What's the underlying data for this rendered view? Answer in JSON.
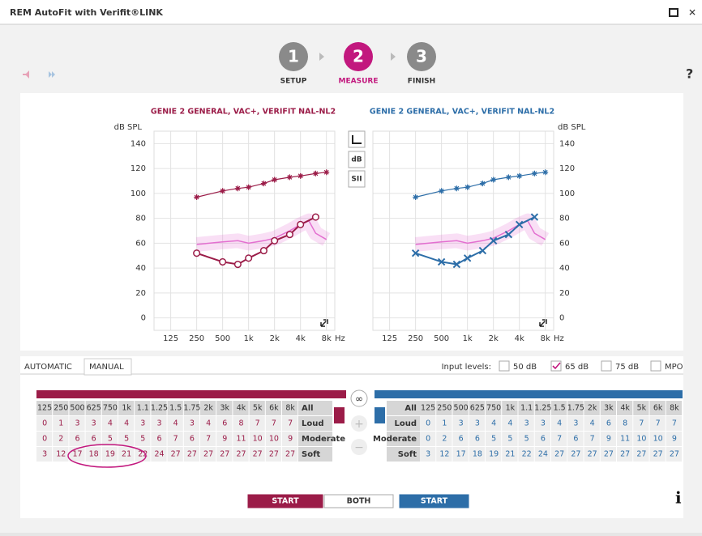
{
  "window_title": "REM AutoFit with Verifit®LINK",
  "steps": [
    {
      "number": "1",
      "label": "SETUP"
    },
    {
      "number": "2",
      "label": "MEASURE"
    },
    {
      "number": "3",
      "label": "FINISH"
    }
  ],
  "help": "?",
  "side_buttons": [
    "dB",
    "SII"
  ],
  "chart_data": [
    {
      "type": "line",
      "title": "GENIE 2 GENERAL, VAC+, VERIFIT NAL-NL2",
      "ylabel": "dB SPL",
      "xunit": "Hz",
      "xscale": "log",
      "xlim": [
        80,
        10000
      ],
      "ylim": [
        -10,
        150
      ],
      "grid": true,
      "color": "#9b1c48",
      "xticks": [
        125,
        250,
        500,
        {
          "value": 1000,
          "label": "1k"
        },
        {
          "value": 2000,
          "label": "2k"
        },
        {
          "value": 4000,
          "label": "4k"
        },
        {
          "value": 8000,
          "label": "8k"
        }
      ],
      "yticks": [
        0,
        20,
        40,
        60,
        80,
        100,
        120,
        140
      ],
      "series": [
        {
          "color": "#e36fd0",
          "marker": "none",
          "x": [
            250,
            500,
            750,
            1000,
            1500,
            2000,
            3000,
            4000,
            5000,
            6000,
            8000
          ],
          "values": [
            59,
            61,
            62,
            60,
            62,
            64,
            70,
            75,
            78,
            68,
            63
          ]
        },
        {
          "color": "#9b1c48",
          "marker": "star",
          "x": [
            250,
            500,
            750,
            1000,
            1500,
            2000,
            3000,
            4000,
            6000,
            8000
          ],
          "values": [
            97,
            102,
            104,
            105,
            108,
            111,
            113,
            114,
            116,
            117
          ]
        },
        {
          "color": "#9b1c48",
          "marker": "circle",
          "x": [
            250,
            500,
            750,
            1000,
            1500,
            2000,
            3000,
            4000,
            6000
          ],
          "values": [
            52,
            45,
            43,
            48,
            54,
            62,
            67,
            75,
            81
          ]
        }
      ]
    },
    {
      "type": "line",
      "title": "GENIE 2 GENERAL, VAC+, VERIFIT NAL-NL2",
      "ylabel": "dB SPL",
      "xunit": "Hz",
      "xscale": "log",
      "xlim": [
        80,
        10000
      ],
      "ylim": [
        -10,
        150
      ],
      "grid": true,
      "color": "#2d6ea8",
      "xticks": [
        125,
        250,
        500,
        {
          "value": 1000,
          "label": "1k"
        },
        {
          "value": 2000,
          "label": "2k"
        },
        {
          "value": 4000,
          "label": "4k"
        },
        {
          "value": 8000,
          "label": "8k"
        }
      ],
      "yticks": [
        0,
        20,
        40,
        60,
        80,
        100,
        120,
        140
      ],
      "series": [
        {
          "color": "#e36fd0",
          "marker": "none",
          "x": [
            250,
            500,
            750,
            1000,
            1500,
            2000,
            3000,
            4000,
            5000,
            6000,
            8000
          ],
          "values": [
            59,
            61,
            62,
            60,
            62,
            64,
            70,
            75,
            78,
            68,
            63
          ]
        },
        {
          "color": "#2d6ea8",
          "marker": "star",
          "x": [
            250,
            500,
            750,
            1000,
            1500,
            2000,
            3000,
            4000,
            6000,
            8000
          ],
          "values": [
            97,
            102,
            104,
            105,
            108,
            111,
            113,
            114,
            116,
            117
          ]
        },
        {
          "color": "#2d6ea8",
          "marker": "cross",
          "x": [
            250,
            500,
            750,
            1000,
            1500,
            2000,
            3000,
            4000,
            6000
          ],
          "values": [
            52,
            45,
            43,
            48,
            54,
            62,
            67,
            75,
            81
          ]
        }
      ]
    }
  ],
  "tabs": [
    "AUTOMATIC",
    "MANUAL"
  ],
  "input_levels": {
    "label": "Input levels:",
    "options": [
      {
        "text": "50 dB",
        "checked": false
      },
      {
        "text": "65 dB",
        "checked": true
      },
      {
        "text": "75 dB",
        "checked": false
      },
      {
        "text": "MPO",
        "checked": false
      }
    ]
  },
  "tables": [
    {
      "color": "#9b1c48",
      "freqs": [
        "125",
        "250",
        "500",
        "625",
        "750",
        "1k",
        "1.1",
        "1.25",
        "1.5",
        "1.75",
        "2k",
        "3k",
        "4k",
        "5k",
        "6k",
        "8k"
      ],
      "all": "All",
      "rows": [
        {
          "label": "Loud",
          "values": [
            0,
            1,
            3,
            3,
            4,
            4,
            3,
            3,
            4,
            3,
            4,
            6,
            8,
            7,
            7,
            7
          ]
        },
        {
          "label": "Moderate",
          "values": [
            0,
            2,
            6,
            6,
            5,
            5,
            5,
            6,
            7,
            6,
            7,
            9,
            11,
            10,
            10,
            9
          ]
        },
        {
          "label": "Soft",
          "values": [
            3,
            12,
            17,
            18,
            19,
            21,
            22,
            24,
            27,
            27,
            27,
            27,
            27,
            27,
            27,
            27
          ]
        }
      ]
    },
    {
      "color": "#2d6ea8",
      "freqs": [
        "125",
        "250",
        "500",
        "625",
        "750",
        "1k",
        "1.1",
        "1.25",
        "1.5",
        "1.75",
        "2k",
        "3k",
        "4k",
        "5k",
        "6k",
        "8k"
      ],
      "all": "All",
      "rows": [
        {
          "label": "Loud",
          "values": [
            0,
            1,
            3,
            3,
            4,
            4,
            3,
            3,
            4,
            3,
            4,
            6,
            8,
            7,
            7,
            7
          ]
        },
        {
          "label": "Moderate",
          "values": [
            0,
            2,
            6,
            6,
            5,
            5,
            5,
            6,
            7,
            6,
            7,
            9,
            11,
            10,
            10,
            9
          ]
        },
        {
          "label": "Soft",
          "values": [
            3,
            12,
            17,
            18,
            19,
            21,
            22,
            24,
            27,
            27,
            27,
            27,
            27,
            27,
            27,
            27
          ]
        }
      ]
    }
  ],
  "buttons": [
    "START",
    "BOTH",
    "START"
  ],
  "info": "i"
}
